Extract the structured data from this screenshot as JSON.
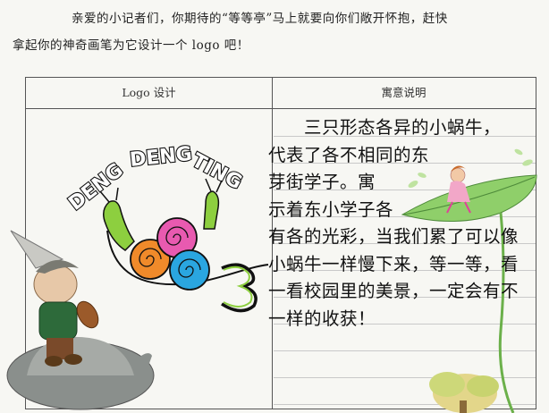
{
  "intro": {
    "line1": "亲爱的小记者们，你期待的“等等亭”马上就要向你们敞开怀抱，赶快",
    "line2": "拿起你的神奇画笔为它设计一个 logo 吧！"
  },
  "table": {
    "col_left_header": "Logo 设计",
    "col_right_header": "寓意说明"
  },
  "logo": {
    "arc_text": "DENG DENG TING",
    "word1": "DENG",
    "word2": "DENG",
    "word3": "TING"
  },
  "meaning_lines": [
    "三只形态各异的小蜗牛，",
    "代表了各不相同的东",
    "芽街学子。寓",
    "示着东小学子各",
    "有各的光彩，当我们累了可以像",
    "小蜗牛一样慢下来，等一等，看",
    "一看校园里的美景，一定会有不",
    "一样的收获！"
  ],
  "colors": {
    "snail_orange": "#f08a2a",
    "snail_pink": "#e85ab0",
    "snail_blue": "#2aa6e0",
    "snail_green": "#7cc23a"
  }
}
